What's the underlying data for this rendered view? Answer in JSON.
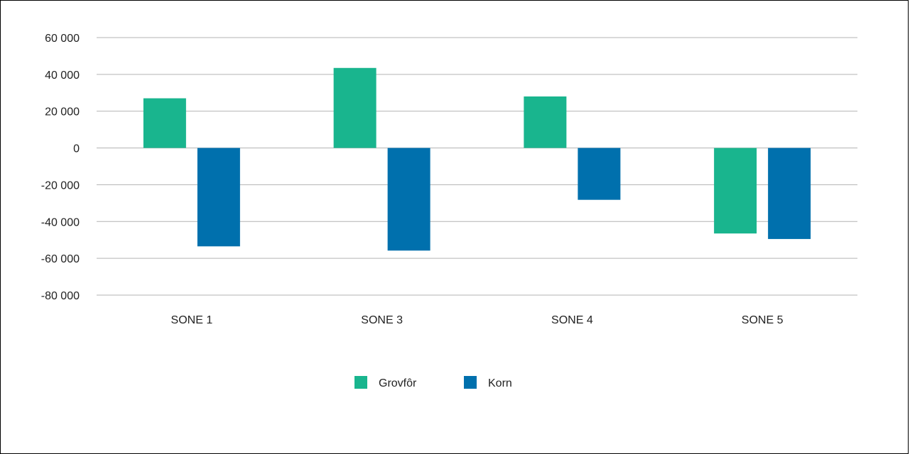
{
  "chart_data": {
    "type": "bar",
    "categories": [
      "SONE 1",
      "SONE 3",
      "SONE 4",
      "SONE 5"
    ],
    "series": [
      {
        "name": "Grovfôr",
        "color": "#19b58e",
        "values": [
          27000,
          43500,
          28000,
          -46500
        ]
      },
      {
        "name": "Korn",
        "color": "#0070ad",
        "values": [
          -53500,
          -55800,
          -28200,
          -49500
        ]
      }
    ],
    "ylim": [
      -80000,
      60000
    ],
    "yticks": [
      60000,
      40000,
      20000,
      0,
      -20000,
      -40000,
      -60000,
      -80000
    ],
    "ytick_labels": [
      "60 000",
      "40 000",
      "20 000",
      "0",
      "-20 000",
      "-40 000",
      "-60 000",
      "-80 000"
    ],
    "grid": true,
    "legend_position": "bottom-center",
    "title": "",
    "xlabel": "",
    "ylabel": ""
  }
}
